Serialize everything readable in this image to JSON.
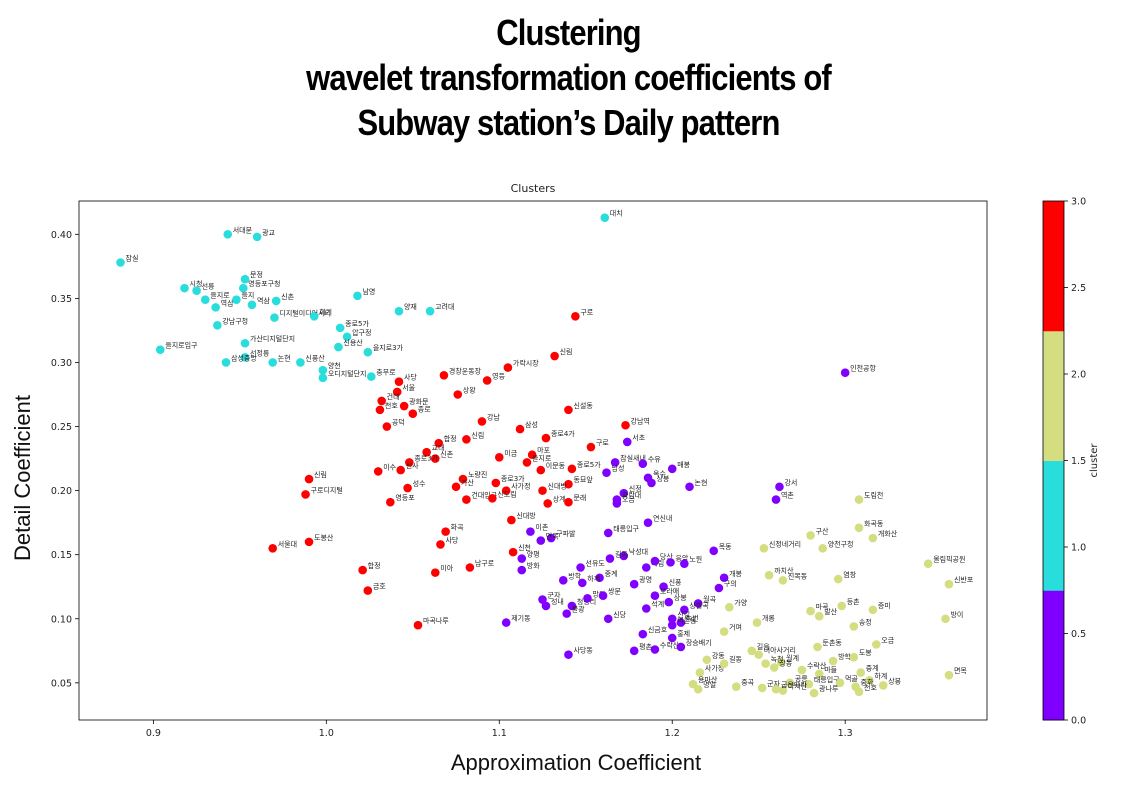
{
  "page": {
    "title_lines": [
      "Clustering",
      "wavelet transformation coefficients of",
      "Subway station’s Daily pattern"
    ],
    "xlabel": "Approximation Coefficient",
    "ylabel": "Detail Coefficient"
  },
  "chart_data": {
    "type": "scatter",
    "title": "Clusters",
    "xlabel": "Approximation Coefficient",
    "ylabel": "Detail Coefficient",
    "xlim": [
      0.857,
      1.382
    ],
    "ylim": [
      0.021,
      0.426
    ],
    "xticks": [
      0.9,
      1.0,
      1.1,
      1.2,
      1.3
    ],
    "yticks": [
      0.05,
      0.1,
      0.15,
      0.2,
      0.25,
      0.3,
      0.35,
      0.4
    ],
    "grid": false,
    "colorbar": {
      "label": "cluster",
      "range": [
        0.0,
        3.0
      ],
      "ticks": [
        "0.0",
        "0.5",
        "1.0",
        "1.5",
        "2.0",
        "2.5",
        "3.0"
      ],
      "colors": [
        "#8000ff",
        "#2adddd",
        "#d4dd80",
        "#ff0000"
      ]
    },
    "cluster_colors": {
      "0": "#8000ff",
      "1": "#2adddd",
      "2": "#d4dd80",
      "3": "#ff0000"
    },
    "series": [
      {
        "cluster": 1,
        "points": [
          [
            1.161,
            0.413,
            "대치"
          ],
          [
            0.881,
            0.378,
            "잠실"
          ],
          [
            0.943,
            0.4,
            "서대문"
          ],
          [
            0.96,
            0.398,
            "광교"
          ],
          [
            0.953,
            0.365,
            "문정"
          ],
          [
            0.952,
            0.358,
            "영등포구청"
          ],
          [
            0.918,
            0.358,
            "시청"
          ],
          [
            0.925,
            0.356,
            "선릉"
          ],
          [
            0.93,
            0.349,
            "을지로"
          ],
          [
            0.936,
            0.343,
            "역삼"
          ],
          [
            0.948,
            0.349,
            "을지"
          ],
          [
            0.957,
            0.345,
            "역삼"
          ],
          [
            0.971,
            0.348,
            "신촌"
          ],
          [
            0.937,
            0.329,
            "강남구청"
          ],
          [
            0.953,
            0.315,
            "가산디지털단지"
          ],
          [
            0.97,
            0.335,
            "디지털미디어시티"
          ],
          [
            0.993,
            0.336,
            "회기"
          ],
          [
            1.018,
            0.352,
            "남영"
          ],
          [
            1.008,
            0.327,
            "종로5가"
          ],
          [
            1.012,
            0.32,
            "압구정"
          ],
          [
            1.007,
            0.312,
            "신용산"
          ],
          [
            1.024,
            0.308,
            "을지로3가"
          ],
          [
            1.042,
            0.34,
            "양재"
          ],
          [
            1.06,
            0.34,
            "고려대"
          ],
          [
            0.904,
            0.31,
            "을지로입구"
          ],
          [
            0.953,
            0.304,
            "선정릉"
          ],
          [
            0.942,
            0.3,
            "삼성중앙"
          ],
          [
            0.969,
            0.3,
            "논현"
          ],
          [
            0.985,
            0.3,
            "신풍산"
          ],
          [
            0.998,
            0.294,
            "양천"
          ],
          [
            0.998,
            0.288,
            "오디지털단지"
          ],
          [
            1.026,
            0.289,
            "충무로"
          ]
        ]
      },
      {
        "cluster": 3,
        "points": [
          [
            1.144,
            0.336,
            "구로"
          ],
          [
            1.132,
            0.305,
            "신림"
          ],
          [
            1.105,
            0.296,
            "가락시장"
          ],
          [
            1.068,
            0.29,
            "경창운동장"
          ],
          [
            1.093,
            0.286,
            "영등"
          ],
          [
            1.076,
            0.275,
            "상왕"
          ],
          [
            1.042,
            0.285,
            "사당"
          ],
          [
            1.041,
            0.277,
            "서울"
          ],
          [
            1.032,
            0.27,
            "건대"
          ],
          [
            1.045,
            0.266,
            "광화문"
          ],
          [
            1.031,
            0.263,
            "천호"
          ],
          [
            1.05,
            0.26,
            "종로"
          ],
          [
            1.035,
            0.25,
            "공덕"
          ],
          [
            1.09,
            0.254,
            "강남"
          ],
          [
            1.112,
            0.248,
            "삼성"
          ],
          [
            1.14,
            0.263,
            "신설동"
          ],
          [
            1.173,
            0.251,
            "강남역"
          ],
          [
            1.065,
            0.237,
            "합정"
          ],
          [
            1.081,
            0.24,
            "신림"
          ],
          [
            1.127,
            0.241,
            "종로4가"
          ],
          [
            1.119,
            0.228,
            "마포"
          ],
          [
            1.153,
            0.234,
            "구로"
          ],
          [
            1.058,
            0.23,
            "교대"
          ],
          [
            1.063,
            0.225,
            "신촌"
          ],
          [
            1.048,
            0.222,
            "종로3가"
          ],
          [
            1.043,
            0.216,
            "신사"
          ],
          [
            1.1,
            0.226,
            "미금"
          ],
          [
            1.116,
            0.222,
            "을지로"
          ],
          [
            1.142,
            0.217,
            "종로5가"
          ],
          [
            1.124,
            0.216,
            "이문동"
          ],
          [
            1.03,
            0.215,
            "이수"
          ],
          [
            1.079,
            0.209,
            "노량진"
          ],
          [
            1.098,
            0.206,
            "종로3가"
          ],
          [
            1.14,
            0.205,
            "동묘앞"
          ],
          [
            0.99,
            0.209,
            "신림"
          ],
          [
            1.047,
            0.202,
            "성수"
          ],
          [
            1.075,
            0.203,
            "가산"
          ],
          [
            1.104,
            0.2,
            "사가정"
          ],
          [
            1.125,
            0.2,
            "신대방"
          ],
          [
            0.988,
            0.197,
            "구로디지털"
          ],
          [
            1.037,
            0.191,
            "영등포"
          ],
          [
            1.081,
            0.193,
            "건대입구"
          ],
          [
            1.096,
            0.194,
            "신도림"
          ],
          [
            1.128,
            0.19,
            "상계"
          ],
          [
            1.14,
            0.191,
            "문래"
          ],
          [
            1.107,
            0.177,
            "신대방"
          ],
          [
            1.069,
            0.168,
            "화곡"
          ],
          [
            1.066,
            0.158,
            "사당"
          ],
          [
            1.108,
            0.152,
            "신천"
          ],
          [
            0.969,
            0.155,
            "서울대"
          ],
          [
            0.99,
            0.16,
            "도봉산"
          ],
          [
            1.021,
            0.138,
            "합정"
          ],
          [
            1.063,
            0.136,
            "미아"
          ],
          [
            1.083,
            0.14,
            "남구로"
          ],
          [
            1.024,
            0.122,
            "금호"
          ],
          [
            1.053,
            0.095,
            "마곡나루"
          ]
        ]
      },
      {
        "cluster": 0,
        "points": [
          [
            1.3,
            0.292,
            "인천공항"
          ],
          [
            1.174,
            0.238,
            "서초"
          ],
          [
            1.167,
            0.222,
            "잠실새내"
          ],
          [
            1.183,
            0.221,
            "수유"
          ],
          [
            1.2,
            0.217,
            "매봉"
          ],
          [
            1.162,
            0.214,
            "남성"
          ],
          [
            1.21,
            0.203,
            "논현"
          ],
          [
            1.186,
            0.21,
            "옥수"
          ],
          [
            1.188,
            0.206,
            "상봉"
          ],
          [
            1.172,
            0.198,
            "신정"
          ],
          [
            1.168,
            0.193,
            "화랑대"
          ],
          [
            1.168,
            0.19,
            "오금"
          ],
          [
            1.262,
            0.203,
            "강서"
          ],
          [
            1.26,
            0.193,
            "역촌"
          ],
          [
            1.186,
            0.175,
            "연신내"
          ],
          [
            1.163,
            0.167,
            "태릉입구"
          ],
          [
            1.118,
            0.168,
            "이촌"
          ],
          [
            1.13,
            0.163,
            "구파발"
          ],
          [
            1.124,
            0.161,
            "면목"
          ],
          [
            1.113,
            0.147,
            "양평"
          ],
          [
            1.113,
            0.138,
            "방화"
          ],
          [
            1.172,
            0.149,
            "낙성대"
          ],
          [
            1.147,
            0.14,
            "선유도"
          ],
          [
            1.164,
            0.147,
            "길동"
          ],
          [
            1.185,
            0.14,
            "대림"
          ],
          [
            1.19,
            0.145,
            "당산"
          ],
          [
            1.199,
            0.144,
            "응암"
          ],
          [
            1.207,
            0.143,
            "노원"
          ],
          [
            1.224,
            0.153,
            "목동"
          ],
          [
            1.158,
            0.132,
            "중계"
          ],
          [
            1.148,
            0.128,
            "하계"
          ],
          [
            1.137,
            0.13,
            "방학"
          ],
          [
            1.23,
            0.132,
            "개봉"
          ],
          [
            1.227,
            0.124,
            "구의"
          ],
          [
            1.178,
            0.127,
            "광명"
          ],
          [
            1.195,
            0.125,
            "신풍"
          ],
          [
            1.19,
            0.118,
            "보라매"
          ],
          [
            1.125,
            0.115,
            "군자"
          ],
          [
            1.127,
            0.11,
            "성내"
          ],
          [
            1.142,
            0.11,
            "청량리"
          ],
          [
            1.151,
            0.116,
            "망원"
          ],
          [
            1.16,
            0.118,
            "쌍문"
          ],
          [
            1.198,
            0.113,
            "상봉"
          ],
          [
            1.215,
            0.112,
            "월곡"
          ],
          [
            1.185,
            0.108,
            "석계"
          ],
          [
            1.207,
            0.107,
            "상월곡"
          ],
          [
            1.139,
            0.104,
            "불광"
          ],
          [
            1.163,
            0.1,
            "신당"
          ],
          [
            1.2,
            0.1,
            "신길"
          ],
          [
            1.205,
            0.097,
            "녹번"
          ],
          [
            1.104,
            0.097,
            "제기동"
          ],
          [
            1.183,
            0.088,
            "신금호"
          ],
          [
            1.2,
            0.085,
            "홍제"
          ],
          [
            1.178,
            0.075,
            "평촌"
          ],
          [
            1.19,
            0.076,
            "수락산"
          ],
          [
            1.205,
            0.078,
            "장승배기"
          ],
          [
            1.14,
            0.072,
            "사당동"
          ],
          [
            1.2,
            0.095,
            "역촌동"
          ]
        ]
      },
      {
        "cluster": 2,
        "points": [
          [
            1.308,
            0.193,
            "도림천"
          ],
          [
            1.308,
            0.171,
            "화곡동"
          ],
          [
            1.316,
            0.163,
            "개화산"
          ],
          [
            1.28,
            0.165,
            "구산"
          ],
          [
            1.287,
            0.155,
            "양천구청"
          ],
          [
            1.253,
            0.155,
            "신정네거리"
          ],
          [
            1.348,
            0.143,
            "올림픽공원"
          ],
          [
            1.36,
            0.127,
            "신반포"
          ],
          [
            1.256,
            0.134,
            "까치산"
          ],
          [
            1.264,
            0.13,
            "신목동"
          ],
          [
            1.296,
            0.131,
            "염창"
          ],
          [
            1.298,
            0.11,
            "등촌"
          ],
          [
            1.316,
            0.107,
            "증미"
          ],
          [
            1.358,
            0.1,
            "방이"
          ],
          [
            1.233,
            0.109,
            "가양"
          ],
          [
            1.28,
            0.106,
            "마곡"
          ],
          [
            1.285,
            0.102,
            "발산"
          ],
          [
            1.305,
            0.094,
            "송정"
          ],
          [
            1.249,
            0.097,
            "개롱"
          ],
          [
            1.23,
            0.09,
            "거여"
          ],
          [
            1.318,
            0.08,
            "오금"
          ],
          [
            1.284,
            0.078,
            "둔촌동"
          ],
          [
            1.246,
            0.075,
            "길음"
          ],
          [
            1.25,
            0.072,
            "미아사거리"
          ],
          [
            1.263,
            0.066,
            "월계"
          ],
          [
            1.254,
            0.065,
            "녹천"
          ],
          [
            1.259,
            0.062,
            "창동"
          ],
          [
            1.293,
            0.067,
            "방학"
          ],
          [
            1.305,
            0.07,
            "도봉"
          ],
          [
            1.275,
            0.06,
            "수락산"
          ],
          [
            1.285,
            0.057,
            "마들"
          ],
          [
            1.309,
            0.058,
            "중계"
          ],
          [
            1.314,
            0.052,
            "하계"
          ],
          [
            1.268,
            0.05,
            "공릉"
          ],
          [
            1.279,
            0.049,
            "태릉입구"
          ],
          [
            1.297,
            0.05,
            "먹골"
          ],
          [
            1.306,
            0.047,
            "중화"
          ],
          [
            1.322,
            0.048,
            "상봉"
          ],
          [
            1.36,
            0.056,
            "면목"
          ],
          [
            1.216,
            0.058,
            "사가정"
          ],
          [
            1.212,
            0.049,
            "용마산"
          ],
          [
            1.237,
            0.047,
            "중곡"
          ],
          [
            1.252,
            0.046,
            "군자"
          ],
          [
            1.264,
            0.044,
            "아차산"
          ],
          [
            1.282,
            0.042,
            "광나루"
          ],
          [
            1.308,
            0.043,
            "천호"
          ],
          [
            1.22,
            0.068,
            "강동"
          ],
          [
            1.23,
            0.065,
            "길동"
          ],
          [
            1.26,
            0.045,
            "굽은다리"
          ],
          [
            1.215,
            0.045,
            "명일"
          ]
        ]
      }
    ]
  }
}
